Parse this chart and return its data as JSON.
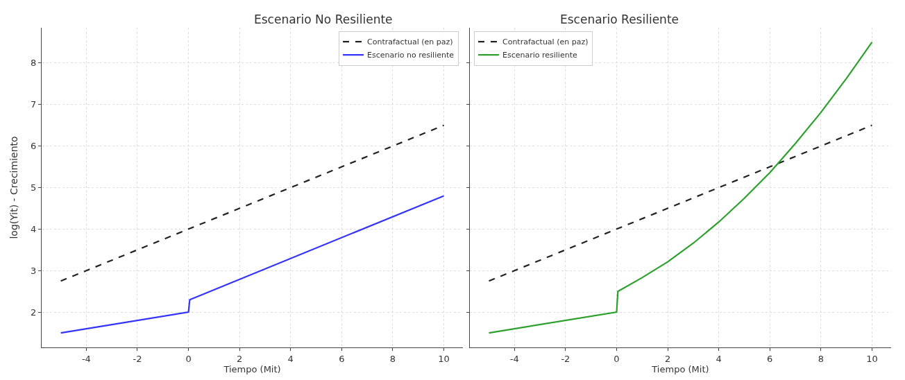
{
  "chart_data": [
    {
      "type": "line",
      "title": "Escenario No Resiliente",
      "xlabel": "Tiempo (Mit)",
      "ylabel": "log(Yit) - Crecimiento",
      "xlim": [
        -5.75,
        10.75
      ],
      "ylim": [
        1.15,
        8.85
      ],
      "xticks": [
        -4,
        -2,
        0,
        2,
        4,
        6,
        8,
        10
      ],
      "yticks": [
        2,
        3,
        4,
        5,
        6,
        7,
        8
      ],
      "grid": true,
      "legend": "top right",
      "series": [
        {
          "name": "Contrafactual (en paz)",
          "color": "#222222",
          "line_style": "dashed",
          "x": [
            -5,
            10
          ],
          "values": [
            2.75,
            6.5
          ]
        },
        {
          "name": "Escenario no resiliente",
          "color": "#3333ff",
          "line_style": "solid",
          "x": [
            -5,
            0,
            0.05,
            10
          ],
          "values": [
            1.5,
            2.0,
            2.3,
            4.8
          ]
        }
      ]
    },
    {
      "type": "line",
      "title": "Escenario Resiliente",
      "xlabel": "Tiempo (Mit)",
      "xlim": [
        -5.75,
        10.75
      ],
      "ylim": [
        1.15,
        8.85
      ],
      "xticks": [
        -4,
        -2,
        0,
        2,
        4,
        6,
        8,
        10
      ],
      "yticks": [
        2,
        3,
        4,
        5,
        6,
        7,
        8
      ],
      "grid": true,
      "legend": "top left",
      "tick_labels": "x",
      "series": [
        {
          "name": "Contrafactual (en paz)",
          "color": "#222222",
          "line_style": "dashed",
          "x": [
            -5,
            10
          ],
          "values": [
            2.75,
            6.5
          ]
        },
        {
          "name": "Escenario resiliente",
          "color": "#2ca02c",
          "line_style": "solid",
          "x": [
            -5,
            0,
            0.05,
            1,
            2,
            3,
            4,
            5,
            6,
            7,
            8,
            9,
            10
          ],
          "values": [
            1.5,
            2.0,
            2.5,
            2.83,
            3.21,
            3.66,
            4.17,
            4.74,
            5.36,
            6.06,
            6.81,
            7.63,
            8.5
          ]
        }
      ]
    }
  ]
}
